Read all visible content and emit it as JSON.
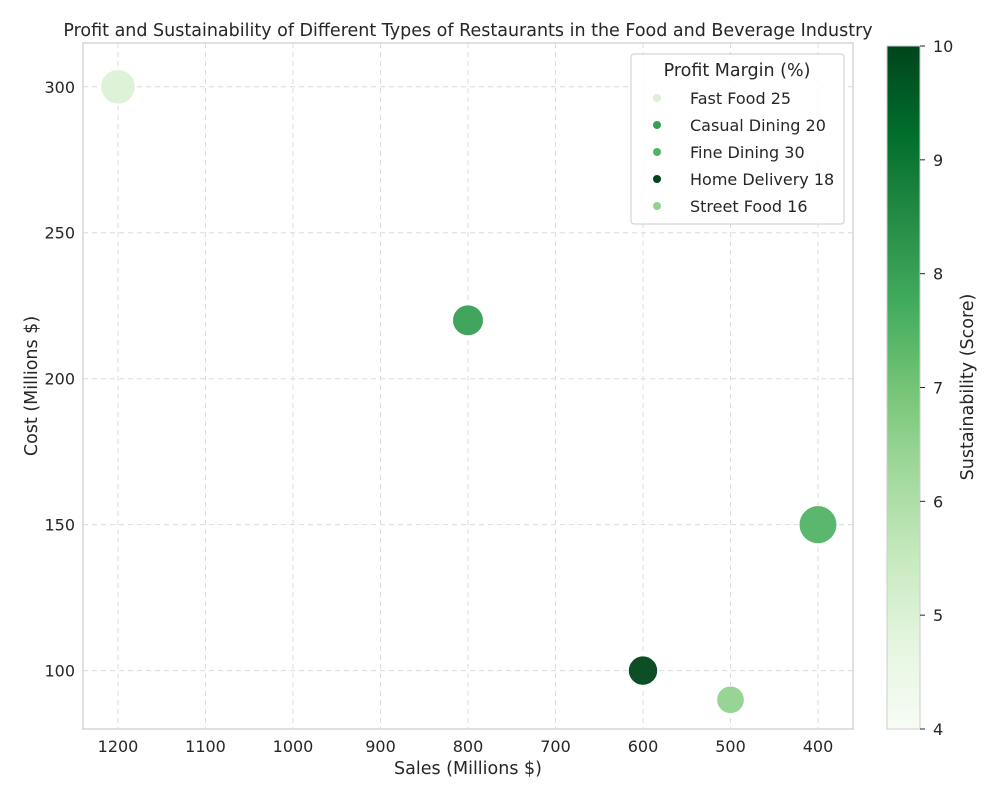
{
  "chart_data": {
    "type": "scatter",
    "title": "Profit and Sustainability of Different Types of Restaurants in the Food and Beverage Industry",
    "xlabel": "Sales (Millions $)",
    "ylabel": "Cost (Millions $)",
    "x_inverted": true,
    "xlim": [
      1240,
      360
    ],
    "ylim": [
      80,
      315
    ],
    "x_ticks": [
      1200,
      1100,
      1000,
      900,
      800,
      700,
      600,
      500,
      400
    ],
    "y_ticks": [
      100,
      150,
      200,
      250,
      300
    ],
    "grid": true,
    "legend": {
      "title": "Profit Margin (%)",
      "placement": "top-right"
    },
    "points": [
      {
        "label": "Fast Food 25",
        "x": 1200,
        "y": 300,
        "profit_margin": 25,
        "sustainability": 5
      },
      {
        "label": "Casual Dining 20",
        "x": 800,
        "y": 220,
        "profit_margin": 20,
        "sustainability": 8
      },
      {
        "label": "Fine Dining 30",
        "x": 400,
        "y": 150,
        "profit_margin": 30,
        "sustainability": 7.5
      },
      {
        "label": "Home Delivery 18",
        "x": 600,
        "y": 100,
        "profit_margin": 18,
        "sustainability": 10
      },
      {
        "label": "Street Food 16",
        "x": 500,
        "y": 90,
        "profit_margin": 16,
        "sustainability": 6.5
      }
    ],
    "colorbar": {
      "label": "Sustainability (Score)",
      "min": 4,
      "max": 10,
      "ticks": [
        4,
        5,
        6,
        7,
        8,
        9,
        10
      ],
      "colormap": "Greens"
    }
  }
}
